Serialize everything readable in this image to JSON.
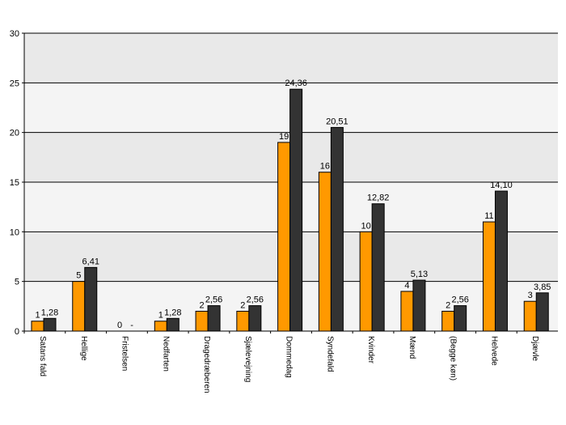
{
  "chart_data": {
    "type": "bar",
    "title": "",
    "xlabel": "",
    "ylabel": "",
    "ylim": [
      0,
      30
    ],
    "yticks": [
      0,
      5,
      10,
      15,
      20,
      25,
      30
    ],
    "grid": true,
    "categories": [
      "Satans fald",
      "Hellige",
      "Fristelsen",
      "Nedfarten",
      "Dragedræberen",
      "Sjælevejning",
      "Dommedag",
      "Syndefald",
      "Kvinder",
      "Mænd",
      "(Begge køn)",
      "Helvede",
      "Djævle"
    ],
    "series": [
      {
        "color": "#FF9900",
        "values": [
          1,
          5,
          0,
          1,
          2,
          2,
          19,
          16,
          10,
          4,
          2,
          11,
          3
        ],
        "labels": [
          "1",
          "5",
          "0",
          "1",
          "2",
          "2",
          "19",
          "16",
          "10",
          "4",
          "2",
          "11",
          "3"
        ]
      },
      {
        "color": "#333333",
        "values": [
          1.28,
          6.41,
          0,
          1.28,
          2.56,
          2.56,
          24.36,
          20.51,
          12.82,
          5.13,
          2.56,
          14.1,
          3.85
        ],
        "labels": [
          "1,28",
          "6,41",
          "-",
          "1,28",
          "2,56",
          "2,56",
          "24,36",
          "20,51",
          "12,82",
          "5,13",
          "2,56",
          "14,10",
          "3,85"
        ]
      }
    ]
  }
}
